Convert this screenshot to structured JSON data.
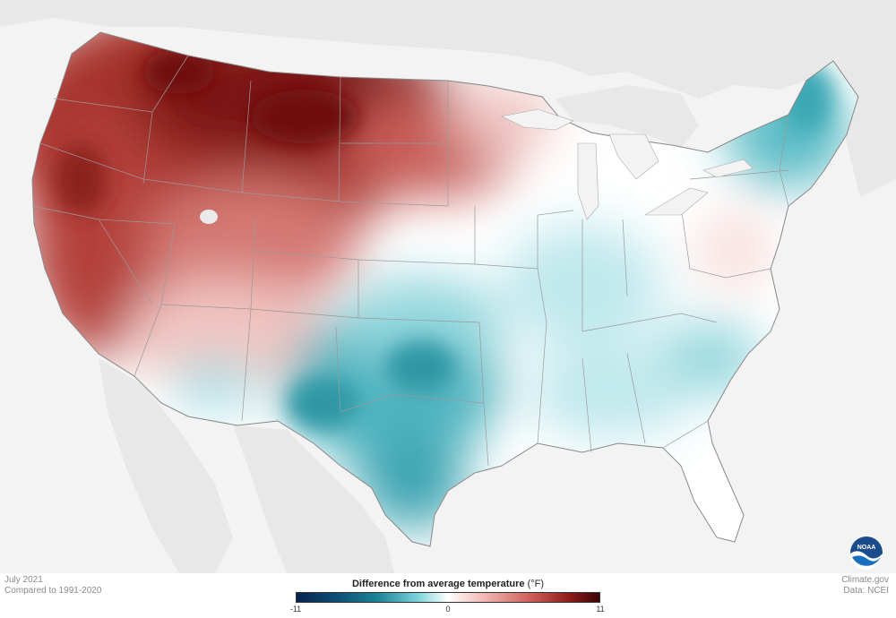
{
  "map": {
    "subject": "Contiguous United States temperature anomaly map",
    "colors": {
      "hot": "#7a1512",
      "cool": "#2a9aa8",
      "neutral": "#ffffff",
      "land_outside": "#e8e8e8",
      "water": "#f3f3f3"
    }
  },
  "footer": {
    "date": "July 2021",
    "baseline": "Compared to 1991-2020",
    "credit": "Climate.gov",
    "data_source": "Data: NCEI"
  },
  "legend": {
    "title": "Difference from average temperature",
    "unit": "(°F)",
    "min_label": "-11",
    "mid_label": "0",
    "max_label": "11",
    "range": [
      -11,
      11
    ],
    "colors": [
      "#08234f",
      "#1b8597",
      "#ffffff",
      "#cc5a55",
      "#3d0505"
    ]
  },
  "logo": {
    "name": "noaa-logo",
    "text": "NOAA"
  }
}
